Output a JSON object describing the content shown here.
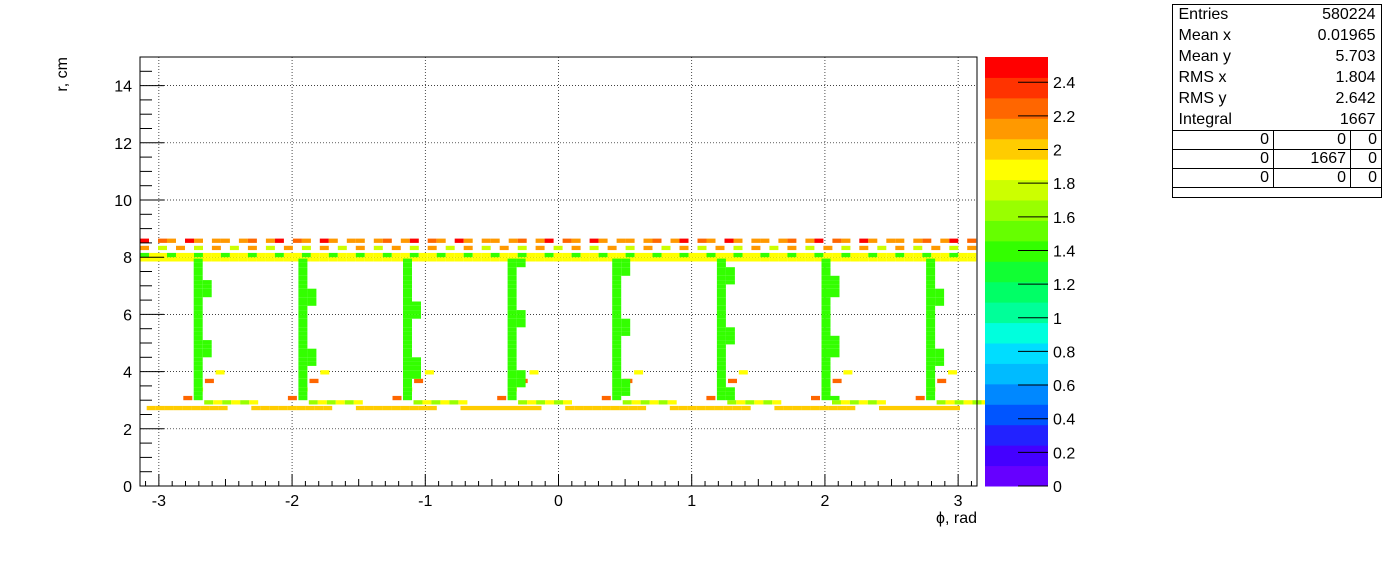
{
  "chart_data": {
    "type": "heatmap",
    "xlabel": "ϕ, rad",
    "ylabel": "r, cm",
    "xlim": [
      -3.1416,
      3.1416
    ],
    "ylim": [
      0,
      15
    ],
    "x_ticks": [
      "-3",
      "-2",
      "-1",
      "0",
      "1",
      "2",
      "3"
    ],
    "y_ticks": [
      "0",
      "2",
      "4",
      "6",
      "8",
      "10",
      "12",
      "14"
    ],
    "z_ticks": [
      "0",
      "0.2",
      "0.4",
      "0.6",
      "0.8",
      "1",
      "1.2",
      "1.4",
      "1.6",
      "1.8",
      "2",
      "2.2",
      "2.4"
    ],
    "zlim": [
      0,
      2.4
    ],
    "grid": true,
    "palette": [
      "#6600ff",
      "#4400ff",
      "#2222ff",
      "#0055ff",
      "#0088ff",
      "#00bbff",
      "#00ddff",
      "#00ffdd",
      "#00ff99",
      "#00ff66",
      "#11ff33",
      "#33ff00",
      "#66ff00",
      "#99ff00",
      "#ccff00",
      "#ffff00",
      "#ffcc00",
      "#ff9900",
      "#ff6600",
      "#ff3300",
      "#ff0000"
    ],
    "structure": {
      "sectors": 8,
      "outer_rings_r": [
        7.9,
        8.1,
        8.35,
        8.6
      ],
      "inner_ring_r": [
        2.75,
        3.0
      ],
      "spoke_r_range": [
        3.0,
        7.9
      ]
    },
    "stats": {
      "rows": [
        {
          "label": "Entries",
          "value": "580224"
        },
        {
          "label": "Mean x",
          "value": "0.01965"
        },
        {
          "label": "Mean y",
          "value": "5.703"
        },
        {
          "label": "RMS x",
          "value": "1.804"
        },
        {
          "label": "RMS y",
          "value": "2.642"
        },
        {
          "label": "Integral",
          "value": "1667"
        }
      ],
      "grid": [
        [
          "0",
          "0",
          "0"
        ],
        [
          "0",
          "1667",
          "0"
        ],
        [
          "0",
          "0",
          "0"
        ]
      ]
    }
  }
}
